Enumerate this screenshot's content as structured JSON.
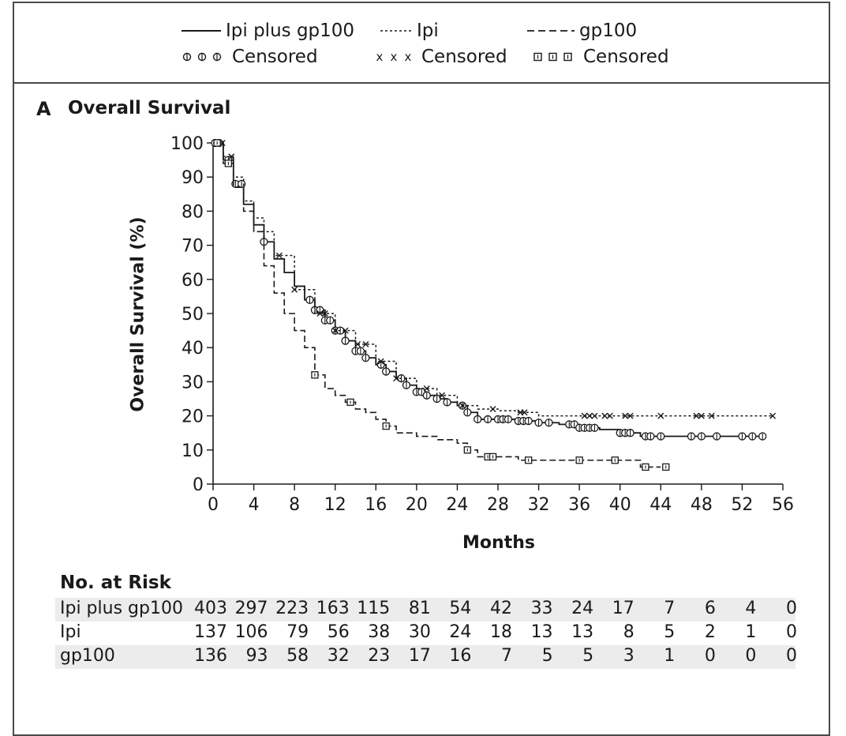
{
  "legend": {
    "ipi_gp100": "Ipi plus gp100",
    "ipi": "Ipi",
    "gp100": "gp100",
    "censored_1": "Censored",
    "censored_2": "Censored",
    "censored_3": "Censored"
  },
  "panel": {
    "letter": "A",
    "title": "Overall Survival"
  },
  "chart_data": {
    "type": "line",
    "ylabel": "Overall Survival (%)",
    "xlabel": "Months",
    "xlim": [
      0,
      56
    ],
    "ylim": [
      0,
      100
    ],
    "xticks": [
      0,
      4,
      8,
      12,
      16,
      20,
      24,
      28,
      32,
      36,
      40,
      44,
      48,
      52,
      56
    ],
    "yticks": [
      0,
      10,
      20,
      30,
      40,
      50,
      60,
      70,
      80,
      90,
      100
    ],
    "grid": false,
    "legend_position": "top",
    "series": [
      {
        "name": "Ipi plus gp100",
        "style": "solid",
        "censor_marker": "circle",
        "x": [
          0,
          1,
          2,
          3,
          4,
          5,
          6,
          7,
          8,
          9,
          10,
          11,
          12,
          13,
          14,
          15,
          16,
          17,
          18,
          19,
          20,
          21,
          22,
          23,
          24,
          25,
          26,
          28,
          30,
          32,
          34,
          36,
          38,
          40,
          42,
          44,
          48,
          52,
          54
        ],
        "y": [
          100,
          95,
          88,
          82,
          76,
          71,
          66,
          62,
          58,
          54,
          51,
          48,
          45,
          42,
          39,
          37,
          35,
          33,
          31,
          29,
          27,
          26,
          25,
          24,
          23,
          21,
          19,
          19,
          18.5,
          18,
          17.5,
          16.5,
          16,
          15,
          14,
          14,
          14,
          14,
          14
        ],
        "censored_x": [
          0.2,
          0.6,
          1.5,
          2.2,
          2.8,
          5,
          9.5,
          10,
          10.5,
          11,
          11.5,
          12,
          12.5,
          13,
          14,
          14.5,
          15,
          16.5,
          17,
          18.5,
          19,
          20,
          20.5,
          21,
          22,
          23,
          24.5,
          25,
          26,
          27,
          28,
          28.5,
          29,
          30,
          30.5,
          31,
          32,
          33,
          35,
          35.5,
          36,
          36.5,
          37,
          37.5,
          40,
          40.5,
          41,
          42.5,
          43,
          44,
          47,
          48,
          49.5,
          52,
          53,
          54
        ]
      },
      {
        "name": "Ipi",
        "style": "dotted",
        "censor_marker": "x",
        "x": [
          0,
          1,
          2,
          3,
          4,
          5,
          6,
          8,
          10,
          12,
          14,
          16,
          18,
          20,
          22,
          24,
          26,
          28,
          30,
          32,
          34,
          36,
          40,
          44,
          48,
          52,
          55
        ],
        "y": [
          100,
          96,
          90,
          83,
          78,
          74,
          67,
          57,
          50,
          45,
          41,
          36,
          31,
          28,
          26,
          23,
          22,
          21.5,
          21,
          20,
          20,
          20,
          20,
          20,
          20,
          20,
          20
        ],
        "censored_x": [
          0.4,
          0.9,
          1.8,
          6.5,
          8,
          10.5,
          11,
          12,
          13,
          14.2,
          15,
          16.5,
          18,
          21,
          22.5,
          24.5,
          27.5,
          30.2,
          30.6,
          36.5,
          37,
          37.5,
          38.5,
          39,
          40.5,
          41,
          44,
          47.5,
          48,
          49,
          55
        ]
      },
      {
        "name": "gp100",
        "style": "dashed",
        "censor_marker": "square",
        "x": [
          0,
          1,
          2,
          3,
          4,
          5,
          6,
          7,
          8,
          9,
          10,
          11,
          12,
          13,
          14,
          15,
          16,
          17,
          18,
          20,
          22,
          24,
          25,
          26,
          27,
          28,
          30,
          32,
          36,
          40,
          42,
          44
        ],
        "y": [
          100,
          94,
          87,
          80,
          74,
          64,
          56,
          50,
          45,
          40,
          32,
          28,
          26,
          24,
          22,
          21,
          19,
          17,
          15,
          14,
          13,
          12,
          10,
          8,
          8,
          8,
          7,
          7,
          7,
          7,
          5,
          5
        ],
        "censored_x": [
          0.4,
          1.5,
          10,
          13.5,
          17,
          25,
          27,
          27.5,
          31,
          36,
          39.5,
          42.5,
          44.5
        ]
      }
    ]
  },
  "risk_table": {
    "title": "No. at Risk",
    "rows": [
      {
        "label": "Ipi plus gp100",
        "values": [
          "403",
          "297",
          "223",
          "163",
          "115",
          "81",
          "54",
          "42",
          "33",
          "24",
          "17",
          "7",
          "6",
          "4",
          "0"
        ]
      },
      {
        "label": "Ipi",
        "values": [
          "137",
          "106",
          "79",
          "56",
          "38",
          "30",
          "24",
          "18",
          "13",
          "13",
          "8",
          "5",
          "2",
          "1",
          "0"
        ]
      },
      {
        "label": "gp100",
        "values": [
          "136",
          "93",
          "58",
          "32",
          "23",
          "17",
          "16",
          "7",
          "5",
          "5",
          "3",
          "1",
          "0",
          "0",
          "0"
        ]
      }
    ]
  }
}
